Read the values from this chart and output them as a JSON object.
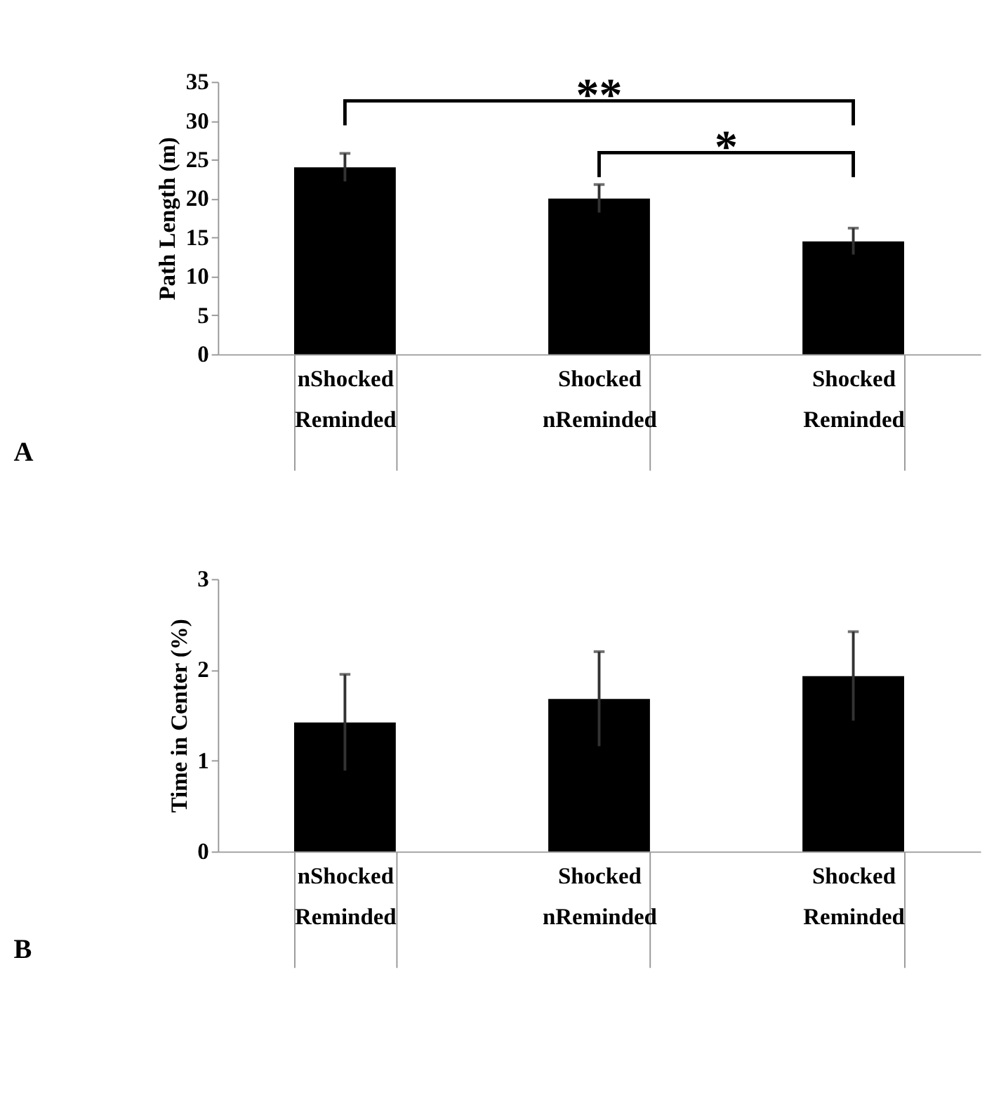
{
  "chart_data": [
    {
      "type": "bar",
      "ylabel": "Path Length (m)",
      "categories": [
        "nShocked Reminded",
        "Shocked nReminded",
        "Shocked Reminded"
      ],
      "values": [
        24,
        20,
        14.5
      ],
      "errors": [
        1.8,
        1.8,
        1.7
      ],
      "color": "#000000",
      "ylim": [
        0,
        35
      ],
      "yticks": [
        0,
        5,
        10,
        15,
        20,
        25,
        30,
        35
      ],
      "grid": false,
      "annotations": [
        "**",
        "*",
        "A"
      ]
    },
    {
      "type": "bar",
      "ylabel": "Time in Center (%)",
      "categories": [
        "nShocked Reminded",
        "Shocked nReminded",
        "Shocked Reminded"
      ],
      "values": [
        1.42,
        1.68,
        1.93
      ],
      "errors": [
        0.53,
        0.52,
        0.49
      ],
      "color": "#000000",
      "ylim": [
        0,
        3
      ],
      "yticks": [
        0,
        1,
        2,
        3
      ],
      "grid": false,
      "annotations": [
        "B"
      ]
    }
  ]
}
